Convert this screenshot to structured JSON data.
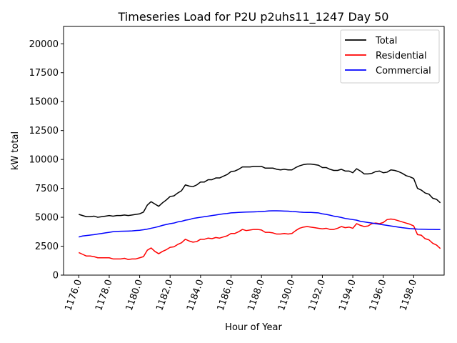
{
  "chart_data": {
    "type": "line",
    "title": "Timeseries Load for P2U p2uhs11_1247  Day 50",
    "xlabel": "Hour of Year",
    "ylabel": "kW total",
    "xlim": [
      1175.0,
      1200.0
    ],
    "ylim": [
      0,
      21500
    ],
    "x_ticks": [
      1176.0,
      1178.0,
      1180.0,
      1182.0,
      1184.0,
      1186.0,
      1188.0,
      1190.0,
      1192.0,
      1194.0,
      1196.0,
      1198.0
    ],
    "x_tick_labels": [
      "1176.0",
      "1178.0",
      "1180.0",
      "1182.0",
      "1184.0",
      "1186.0",
      "1188.0",
      "1190.0",
      "1192.0",
      "1194.0",
      "1196.0",
      "1198.0"
    ],
    "y_ticks": [
      0,
      2500,
      5000,
      7500,
      10000,
      12500,
      15000,
      17500,
      20000
    ],
    "y_tick_labels": [
      "0",
      "2500",
      "5000",
      "7500",
      "10000",
      "12500",
      "15000",
      "17500",
      "20000"
    ],
    "legend_position": "top-right",
    "series": [
      {
        "name": "Total",
        "color": "#000000",
        "x": [
          1176.0,
          1176.25,
          1176.5,
          1176.75,
          1177.0,
          1177.25,
          1177.5,
          1177.75,
          1178.0,
          1178.25,
          1178.5,
          1178.75,
          1179.0,
          1179.25,
          1179.5,
          1179.75,
          1180.0,
          1180.25,
          1180.5,
          1180.75,
          1181.0,
          1181.25,
          1181.5,
          1181.75,
          1182.0,
          1182.25,
          1182.5,
          1182.75,
          1183.0,
          1183.25,
          1183.5,
          1183.75,
          1184.0,
          1184.25,
          1184.5,
          1184.75,
          1185.0,
          1185.25,
          1185.5,
          1185.75,
          1186.0,
          1186.25,
          1186.5,
          1186.75,
          1187.0,
          1187.25,
          1187.5,
          1187.75,
          1188.0,
          1188.25,
          1188.5,
          1188.75,
          1189.0,
          1189.25,
          1189.5,
          1189.75,
          1190.0,
          1190.25,
          1190.5,
          1190.75,
          1191.0,
          1191.25,
          1191.5,
          1191.75,
          1192.0,
          1192.25,
          1192.5,
          1192.75,
          1193.0,
          1193.25,
          1193.5,
          1193.75,
          1194.0,
          1194.25,
          1194.5,
          1194.75,
          1195.0,
          1195.25,
          1195.5,
          1195.75,
          1196.0,
          1196.25,
          1196.5,
          1196.75,
          1197.0,
          1197.25,
          1197.5,
          1197.75,
          1198.0,
          1198.25,
          1198.5,
          1198.75,
          1199.0,
          1199.25,
          1199.5,
          1199.75
        ],
        "values": [
          5250,
          5150,
          5050,
          5050,
          5100,
          5000,
          5050,
          5100,
          5150,
          5100,
          5150,
          5150,
          5200,
          5150,
          5200,
          5250,
          5300,
          5450,
          6050,
          6350,
          6150,
          5950,
          6250,
          6500,
          6800,
          6850,
          7100,
          7300,
          7800,
          7700,
          7650,
          7800,
          8050,
          8050,
          8250,
          8250,
          8400,
          8400,
          8550,
          8700,
          8950,
          9000,
          9150,
          9350,
          9350,
          9350,
          9400,
          9400,
          9400,
          9250,
          9250,
          9250,
          9150,
          9100,
          9150,
          9100,
          9100,
          9300,
          9450,
          9550,
          9600,
          9600,
          9550,
          9500,
          9300,
          9300,
          9150,
          9050,
          9050,
          9150,
          9000,
          9000,
          8850,
          9200,
          9000,
          8750,
          8750,
          8800,
          8950,
          9000,
          8850,
          8900,
          9100,
          9050,
          8950,
          8800,
          8600,
          8500,
          8350,
          7500,
          7350,
          7100,
          7000,
          6650,
          6550,
          6250
        ]
      },
      {
        "name": "Residential",
        "color": "#ff0000",
        "x": [
          1176.0,
          1176.25,
          1176.5,
          1176.75,
          1177.0,
          1177.25,
          1177.5,
          1177.75,
          1178.0,
          1178.25,
          1178.5,
          1178.75,
          1179.0,
          1179.25,
          1179.5,
          1179.75,
          1180.0,
          1180.25,
          1180.5,
          1180.75,
          1181.0,
          1181.25,
          1181.5,
          1181.75,
          1182.0,
          1182.25,
          1182.5,
          1182.75,
          1183.0,
          1183.25,
          1183.5,
          1183.75,
          1184.0,
          1184.25,
          1184.5,
          1184.75,
          1185.0,
          1185.25,
          1185.5,
          1185.75,
          1186.0,
          1186.25,
          1186.5,
          1186.75,
          1187.0,
          1187.25,
          1187.5,
          1187.75,
          1188.0,
          1188.25,
          1188.5,
          1188.75,
          1189.0,
          1189.25,
          1189.5,
          1189.75,
          1190.0,
          1190.25,
          1190.5,
          1190.75,
          1191.0,
          1191.25,
          1191.5,
          1191.75,
          1192.0,
          1192.25,
          1192.5,
          1192.75,
          1193.0,
          1193.25,
          1193.5,
          1193.75,
          1194.0,
          1194.25,
          1194.5,
          1194.75,
          1195.0,
          1195.25,
          1195.5,
          1195.75,
          1196.0,
          1196.25,
          1196.5,
          1196.75,
          1197.0,
          1197.25,
          1197.5,
          1197.75,
          1198.0,
          1198.25,
          1198.5,
          1198.75,
          1199.0,
          1199.25,
          1199.5,
          1199.75
        ],
        "values": [
          1950,
          1800,
          1650,
          1650,
          1600,
          1500,
          1500,
          1500,
          1500,
          1400,
          1400,
          1400,
          1450,
          1350,
          1400,
          1400,
          1500,
          1600,
          2150,
          2350,
          2050,
          1850,
          2050,
          2200,
          2400,
          2450,
          2650,
          2800,
          3100,
          2950,
          2850,
          2900,
          3100,
          3100,
          3200,
          3150,
          3250,
          3200,
          3300,
          3400,
          3600,
          3600,
          3750,
          3950,
          3850,
          3900,
          3950,
          3950,
          3900,
          3700,
          3700,
          3650,
          3550,
          3550,
          3600,
          3550,
          3600,
          3850,
          4050,
          4150,
          4200,
          4150,
          4100,
          4050,
          4000,
          4050,
          3950,
          3950,
          4050,
          4200,
          4100,
          4150,
          4050,
          4450,
          4300,
          4200,
          4250,
          4450,
          4500,
          4450,
          4550,
          4800,
          4850,
          4800,
          4700,
          4600,
          4500,
          4400,
          4250,
          3500,
          3450,
          3150,
          3050,
          2750,
          2600,
          2300
        ]
      },
      {
        "name": "Commercial",
        "color": "#0000ff",
        "x": [
          1176.0,
          1176.25,
          1176.5,
          1176.75,
          1177.0,
          1177.25,
          1177.5,
          1177.75,
          1178.0,
          1178.25,
          1178.5,
          1178.75,
          1179.0,
          1179.25,
          1179.5,
          1179.75,
          1180.0,
          1180.25,
          1180.5,
          1180.75,
          1181.0,
          1181.25,
          1181.5,
          1181.75,
          1182.0,
          1182.25,
          1182.5,
          1182.75,
          1183.0,
          1183.25,
          1183.5,
          1183.75,
          1184.0,
          1184.25,
          1184.5,
          1184.75,
          1185.0,
          1185.25,
          1185.5,
          1185.75,
          1186.0,
          1186.25,
          1186.5,
          1186.75,
          1187.0,
          1187.25,
          1187.5,
          1187.75,
          1188.0,
          1188.25,
          1188.5,
          1188.75,
          1189.0,
          1189.25,
          1189.5,
          1189.75,
          1190.0,
          1190.25,
          1190.5,
          1190.75,
          1191.0,
          1191.25,
          1191.5,
          1191.75,
          1192.0,
          1192.25,
          1192.5,
          1192.75,
          1193.0,
          1193.25,
          1193.5,
          1193.75,
          1194.0,
          1194.25,
          1194.5,
          1194.75,
          1195.0,
          1195.25,
          1195.5,
          1195.75,
          1196.0,
          1196.25,
          1196.5,
          1196.75,
          1197.0,
          1197.25,
          1197.5,
          1197.75,
          1198.0,
          1198.25,
          1198.5,
          1198.75,
          1199.0,
          1199.25,
          1199.5,
          1199.75
        ],
        "values": [
          3300,
          3380,
          3420,
          3460,
          3500,
          3550,
          3600,
          3650,
          3700,
          3750,
          3780,
          3790,
          3800,
          3810,
          3820,
          3850,
          3880,
          3920,
          3980,
          4050,
          4120,
          4200,
          4300,
          4380,
          4450,
          4500,
          4600,
          4650,
          4750,
          4800,
          4900,
          4950,
          5000,
          5050,
          5100,
          5150,
          5200,
          5250,
          5300,
          5330,
          5380,
          5400,
          5420,
          5440,
          5450,
          5460,
          5470,
          5480,
          5500,
          5520,
          5550,
          5560,
          5560,
          5550,
          5540,
          5530,
          5500,
          5480,
          5450,
          5430,
          5420,
          5420,
          5400,
          5380,
          5300,
          5250,
          5180,
          5100,
          5050,
          4980,
          4900,
          4850,
          4800,
          4750,
          4650,
          4600,
          4550,
          4500,
          4450,
          4400,
          4350,
          4300,
          4250,
          4200,
          4150,
          4100,
          4060,
          4020,
          4000,
          3980,
          3970,
          3960,
          3950,
          3950,
          3940,
          3940
        ]
      }
    ]
  }
}
